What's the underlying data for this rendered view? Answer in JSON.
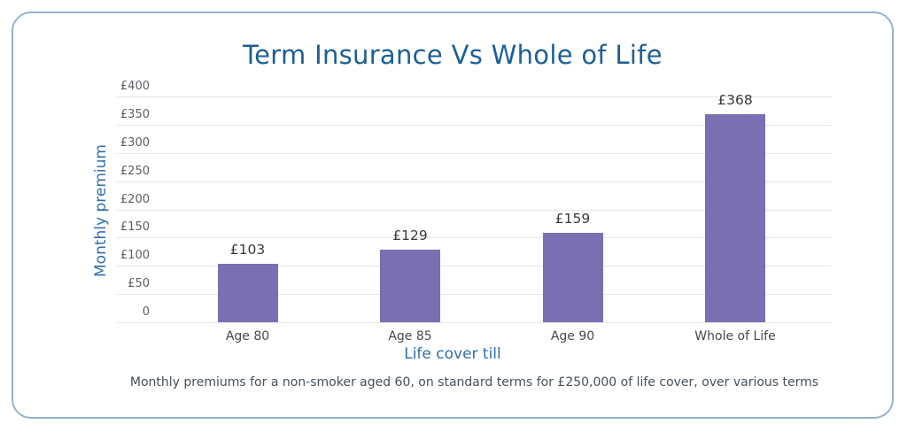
{
  "chart_data": {
    "type": "bar",
    "title": "Term Insurance Vs Whole of Life",
    "xlabel": "Life cover till",
    "ylabel": "Monthly premium",
    "categories": [
      "Age 80",
      "Age 85",
      "Age 90",
      "Whole of Life"
    ],
    "values": [
      103,
      129,
      159,
      368
    ],
    "bar_labels": [
      "£103",
      "£129",
      "£159",
      "£368"
    ],
    "ylim": [
      0,
      400
    ],
    "ytick_labels_top_to_bottom": [
      "£400",
      "£350",
      "£300",
      "£250",
      "£200",
      "£150",
      "£100",
      "£50",
      "0"
    ],
    "grid": true,
    "legend": "none",
    "caption": "Monthly premiums for a non-smoker aged 60, on standard terms for £250,000 of life cover, over various terms",
    "colors": {
      "bar": "#7a6fb1",
      "title": "#1c5f93",
      "axis_title": "#2e6fa9",
      "gridline": "#e5e5ea",
      "tick_label": "#5a5e63",
      "value_label": "#38393b",
      "category_label": "#46484c",
      "caption": "#44505a",
      "card_border": "#92b4cc"
    }
  }
}
